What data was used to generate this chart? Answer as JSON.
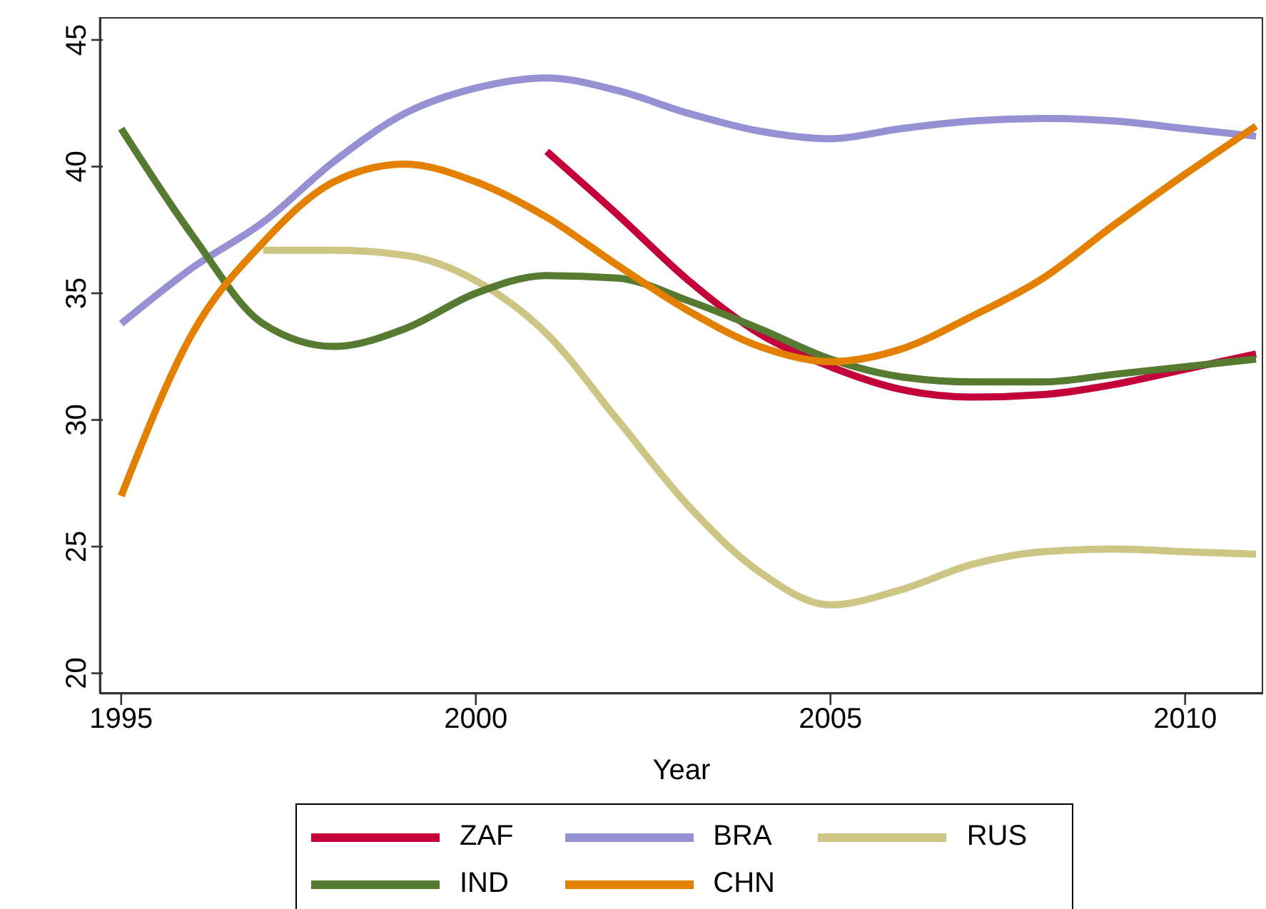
{
  "chart_data": {
    "type": "line",
    "xlabel": "Year",
    "xlim": [
      1994.7,
      2011.1
    ],
    "ylim": [
      19.2,
      45.9
    ],
    "xticks": [
      1995,
      2000,
      2005,
      2010
    ],
    "yticks": [
      20,
      25,
      30,
      35,
      40,
      45
    ],
    "grid": false,
    "legend": "bottom",
    "marker": "none",
    "line_style": "solid",
    "series": [
      {
        "name": "ZAF",
        "color": "#c4003a",
        "x": [
          2001,
          2002,
          2003,
          2004,
          2005,
          2006,
          2007,
          2008,
          2009,
          2010,
          2011
        ],
        "values": [
          40.6,
          38.1,
          35.5,
          33.4,
          32.1,
          31.2,
          30.9,
          31.0,
          31.4,
          32.0,
          32.6
        ]
      },
      {
        "name": "BRA",
        "color": "#9591d3",
        "x": [
          1995,
          1996,
          1997,
          1998,
          1999,
          2000,
          2001,
          2002,
          2003,
          2004,
          2005,
          2006,
          2007,
          2008,
          2009,
          2010,
          2011
        ],
        "values": [
          33.8,
          36.0,
          37.8,
          40.2,
          42.1,
          43.1,
          43.5,
          43.0,
          42.1,
          41.4,
          41.1,
          41.5,
          41.8,
          41.9,
          41.8,
          41.5,
          41.2
        ]
      },
      {
        "name": "RUS",
        "color": "#ccc583",
        "x": [
          1997,
          1998,
          1999,
          2000,
          2001,
          2002,
          2003,
          2004,
          2005,
          2006,
          2007,
          2008,
          2009,
          2010,
          2011
        ],
        "values": [
          36.7,
          36.7,
          36.5,
          35.5,
          33.4,
          30.0,
          26.6,
          24.0,
          22.7,
          23.3,
          24.3,
          24.8,
          24.9,
          24.8,
          24.7
        ]
      },
      {
        "name": "IND",
        "color": "#557a30",
        "x": [
          1995,
          1996,
          1997,
          1998,
          1999,
          2000,
          2001,
          2002,
          2003,
          2004,
          2005,
          2006,
          2007,
          2008,
          2009,
          2010,
          2011
        ],
        "values": [
          41.5,
          37.3,
          33.8,
          32.9,
          33.6,
          35.0,
          35.7,
          35.6,
          34.7,
          33.6,
          32.4,
          31.7,
          31.5,
          31.5,
          31.8,
          32.1,
          32.4
        ]
      },
      {
        "name": "CHN",
        "color": "#e38000",
        "x": [
          1995,
          1996,
          1997,
          1998,
          1999,
          2000,
          2001,
          2002,
          2003,
          2004,
          2005,
          2006,
          2007,
          2008,
          2009,
          2010,
          2011
        ],
        "values": [
          27.0,
          33.4,
          37.0,
          39.4,
          40.1,
          39.4,
          38.0,
          36.1,
          34.3,
          32.9,
          32.3,
          32.8,
          34.1,
          35.6,
          37.7,
          39.7,
          41.6
        ]
      }
    ]
  }
}
